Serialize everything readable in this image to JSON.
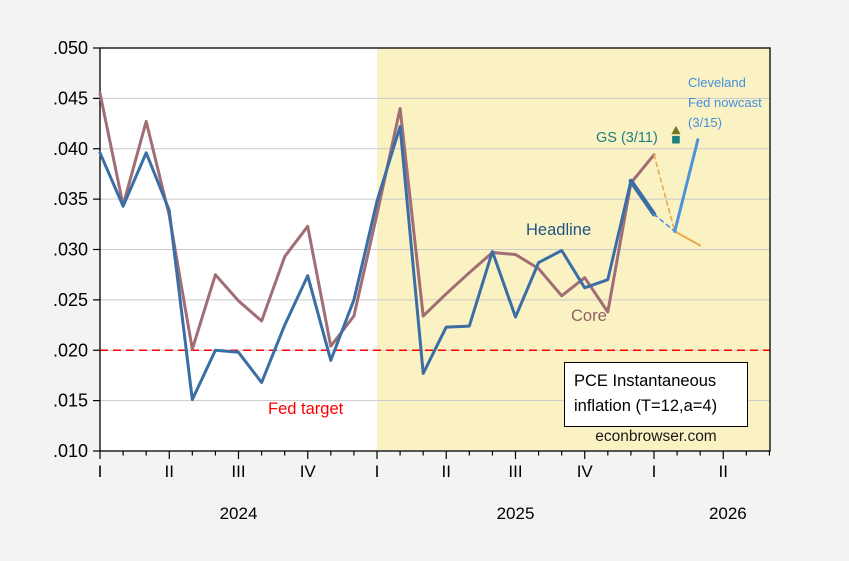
{
  "chart_data": {
    "type": "line",
    "title_box": {
      "line1": "PCE Instantaneous",
      "line2": "inflation (T=12,a=4)"
    },
    "watermark": "econbrowser.com",
    "months": [
      "Jan 2024",
      "Feb 2024",
      "Mar 2024",
      "Apr 2024",
      "May 2024",
      "Jun 2024",
      "Jul 2024",
      "Aug 2024",
      "Sep 2024",
      "Oct 2024",
      "Nov 2024",
      "Dec 2024",
      "Jan 2025",
      "Feb 2025",
      "Mar 2025",
      "Apr 2025",
      "May 2025",
      "Jun 2025",
      "Jul 2025",
      "Aug 2025",
      "Sep 2025",
      "Oct 2025",
      "Nov 2025",
      "Dec 2025",
      "Jan 2026"
    ],
    "series": [
      {
        "name": "Headline",
        "values": [
          0.0396,
          0.0343,
          0.0396,
          0.0339,
          0.0151,
          0.02,
          0.0198,
          0.0168,
          0.0225,
          0.0274,
          0.019,
          0.025,
          0.0348,
          0.0422,
          0.0177,
          0.0223,
          0.0224,
          0.0298,
          0.0233,
          0.0287,
          0.0299,
          0.0262,
          0.027,
          0.0368,
          0.0335
        ]
      },
      {
        "name": "Core",
        "values": [
          0.0455,
          0.0344,
          0.0427,
          0.0334,
          0.0201,
          0.0275,
          0.0249,
          0.0229,
          0.0293,
          0.0323,
          0.0204,
          0.0234,
          0.0335,
          0.044,
          0.0234,
          0.0256,
          0.0277,
          0.0297,
          0.0295,
          0.0281,
          0.0254,
          0.0272,
          0.0238,
          0.0366,
          0.0394
        ]
      }
    ],
    "fed_target_value": 0.02,
    "shade_start_month": "Jan 2025",
    "ylim": [
      0.01,
      0.05
    ],
    "ytick_labels": [
      ".010",
      ".015",
      ".020",
      ".025",
      ".030",
      ".035",
      ".040",
      ".045",
      ".050"
    ],
    "ytick_values": [
      0.01,
      0.015,
      0.02,
      0.025,
      0.03,
      0.035,
      0.04,
      0.045,
      0.05
    ],
    "grid": "horizontal",
    "quarter_labels": [
      {
        "m": 0,
        "label": "I"
      },
      {
        "m": 3,
        "label": "II"
      },
      {
        "m": 6,
        "label": "III"
      },
      {
        "m": 9,
        "label": "IV"
      },
      {
        "m": 12,
        "label": "I"
      },
      {
        "m": 15,
        "label": "II"
      },
      {
        "m": 18,
        "label": "III"
      },
      {
        "m": 21,
        "label": "IV"
      },
      {
        "m": 24,
        "label": "I"
      },
      {
        "m": 27,
        "label": "II"
      }
    ],
    "year_labels": [
      {
        "m": 6.0,
        "label": "2024"
      },
      {
        "m": 18.0,
        "label": "2025"
      },
      {
        "m": 27.2,
        "label": "2026"
      }
    ],
    "forecast_segments": [
      {
        "name": "core-forecast-dashed",
        "from_m": 24,
        "from_v": 0.0394,
        "to_m": 24.9,
        "to_v": 0.0318,
        "color": "forecast_orange",
        "dashed": true,
        "width": 1.6
      },
      {
        "name": "headline-forecast-dashed",
        "from_m": 24,
        "from_v": 0.0335,
        "to_m": 24.9,
        "to_v": 0.0318,
        "color": "cleveland_blue",
        "dashed": true,
        "width": 1.6
      },
      {
        "name": "forecast-orange-solid",
        "from_m": 24.9,
        "from_v": 0.0318,
        "to_m": 26.0,
        "to_v": 0.0304,
        "color": "forecast_orange",
        "dashed": false,
        "width": 2
      },
      {
        "name": "cleveland-nowcast-line",
        "from_m": 24.9,
        "from_v": 0.0318,
        "to_m": 25.9,
        "to_v": 0.0409,
        "color": "cleveland_blue",
        "dashed": false,
        "width": 3
      }
    ],
    "markers": [
      {
        "name": "gs-triangle-marker",
        "shape": "triangle",
        "m": 24.95,
        "v": 0.0418,
        "color": "gs_triangle"
      },
      {
        "name": "gs-square-marker",
        "shape": "square",
        "m": 24.95,
        "v": 0.0409,
        "color": "gs_square"
      }
    ]
  },
  "labels": {
    "headline": "Headline",
    "core": "Core",
    "fed_target": "Fed target",
    "gs": "GS (3/11)",
    "cleveland_line1": "Cleveland",
    "cleveland_line2": "Fed nowcast",
    "cleveland_line3": "(3/15)"
  },
  "colors": {
    "headline": "#3B6EA5",
    "core": "#A06E74",
    "cleveland_blue": "#4C92DC",
    "forecast_orange": "#E9A94F",
    "fed_target_red": "#FF0000",
    "shade_yellow": "#FBF2C4",
    "grid_gray": "#C9C9C9",
    "gs_square": "#1A8080",
    "gs_triangle": "#75751E",
    "frame": "#000000",
    "plot_background": "#FFFFFF",
    "page_background": "#F3F3F2"
  }
}
